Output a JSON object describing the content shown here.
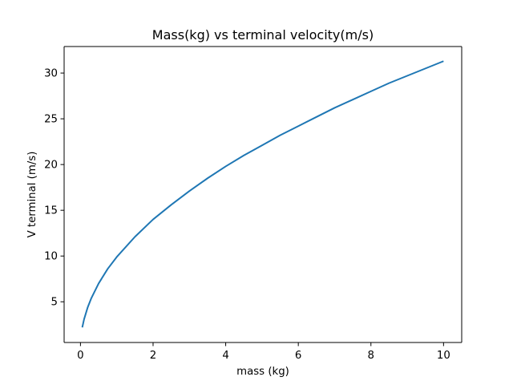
{
  "chart_data": {
    "type": "line",
    "title": "Mass(kg) vs terminal velocity(m/s)",
    "xlabel": "mass (kg)",
    "ylabel": "V terminal (m/s)",
    "xlim": [
      -0.45,
      10.5
    ],
    "ylim": [
      0.55,
      32.9
    ],
    "xticks": [
      0,
      2,
      4,
      6,
      8,
      10
    ],
    "yticks": [
      5,
      10,
      15,
      20,
      25,
      30
    ],
    "grid": false,
    "series": [
      {
        "color": "#1f77b4",
        "x": [
          0.05,
          0.1,
          0.2,
          0.3,
          0.5,
          0.75,
          1.0,
          1.5,
          2.0,
          2.5,
          3.0,
          3.5,
          4.0,
          4.5,
          5.0,
          5.5,
          6.0,
          6.5,
          7.0,
          7.5,
          8.0,
          8.5,
          9.0,
          9.5,
          10.0
        ],
        "y": [
          2.2,
          3.1,
          4.4,
          5.4,
          7.0,
          8.6,
          9.9,
          12.1,
          14.0,
          15.6,
          17.1,
          18.5,
          19.8,
          21.0,
          22.1,
          23.2,
          24.2,
          25.2,
          26.2,
          27.1,
          28.0,
          28.9,
          29.7,
          30.5,
          31.3
        ]
      }
    ]
  }
}
